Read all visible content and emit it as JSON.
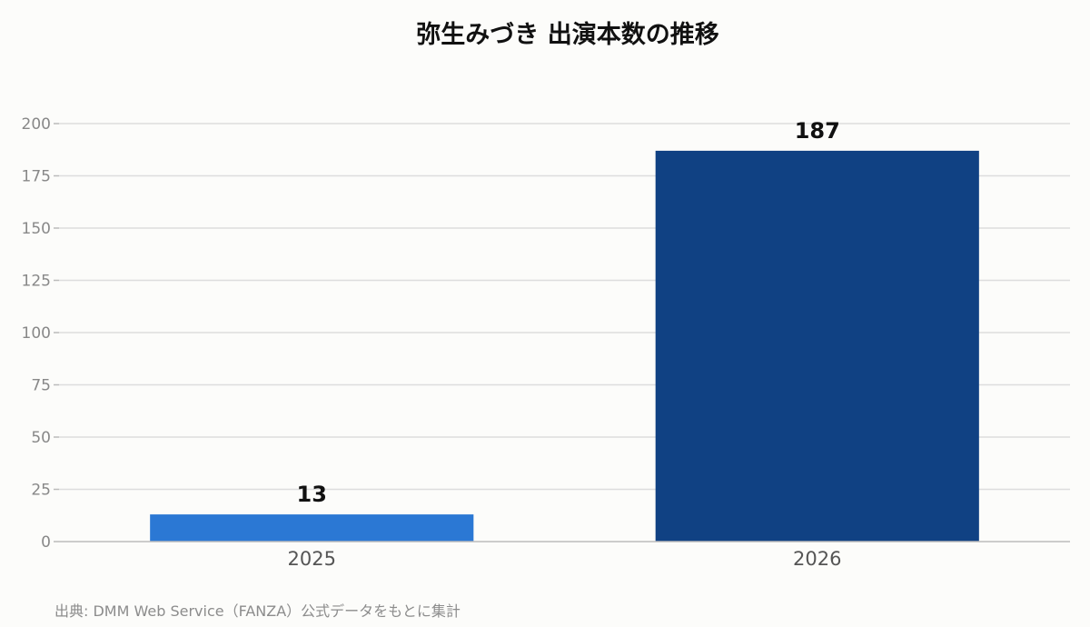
{
  "chart_data": {
    "type": "bar",
    "title": "弥生みづき 出演本数の推移",
    "categories": [
      "2025",
      "2026"
    ],
    "values": [
      13,
      187
    ],
    "bar_colors": [
      "#2b78d4",
      "#104183"
    ],
    "ylim": [
      0,
      200
    ],
    "yticks": [
      0,
      25,
      50,
      75,
      100,
      125,
      150,
      175,
      200
    ],
    "grid": true,
    "xlabel": "",
    "ylabel": ""
  },
  "footer": {
    "source": "出典: DMM Web Service（FANZA）公式データをもとに集計"
  },
  "colors": {
    "background": "#fcfcfa",
    "grid": "#dddddd",
    "axis": "#bbbbbb",
    "tick_text": "#888888",
    "category_text": "#555555",
    "value_label": "#111111"
  }
}
